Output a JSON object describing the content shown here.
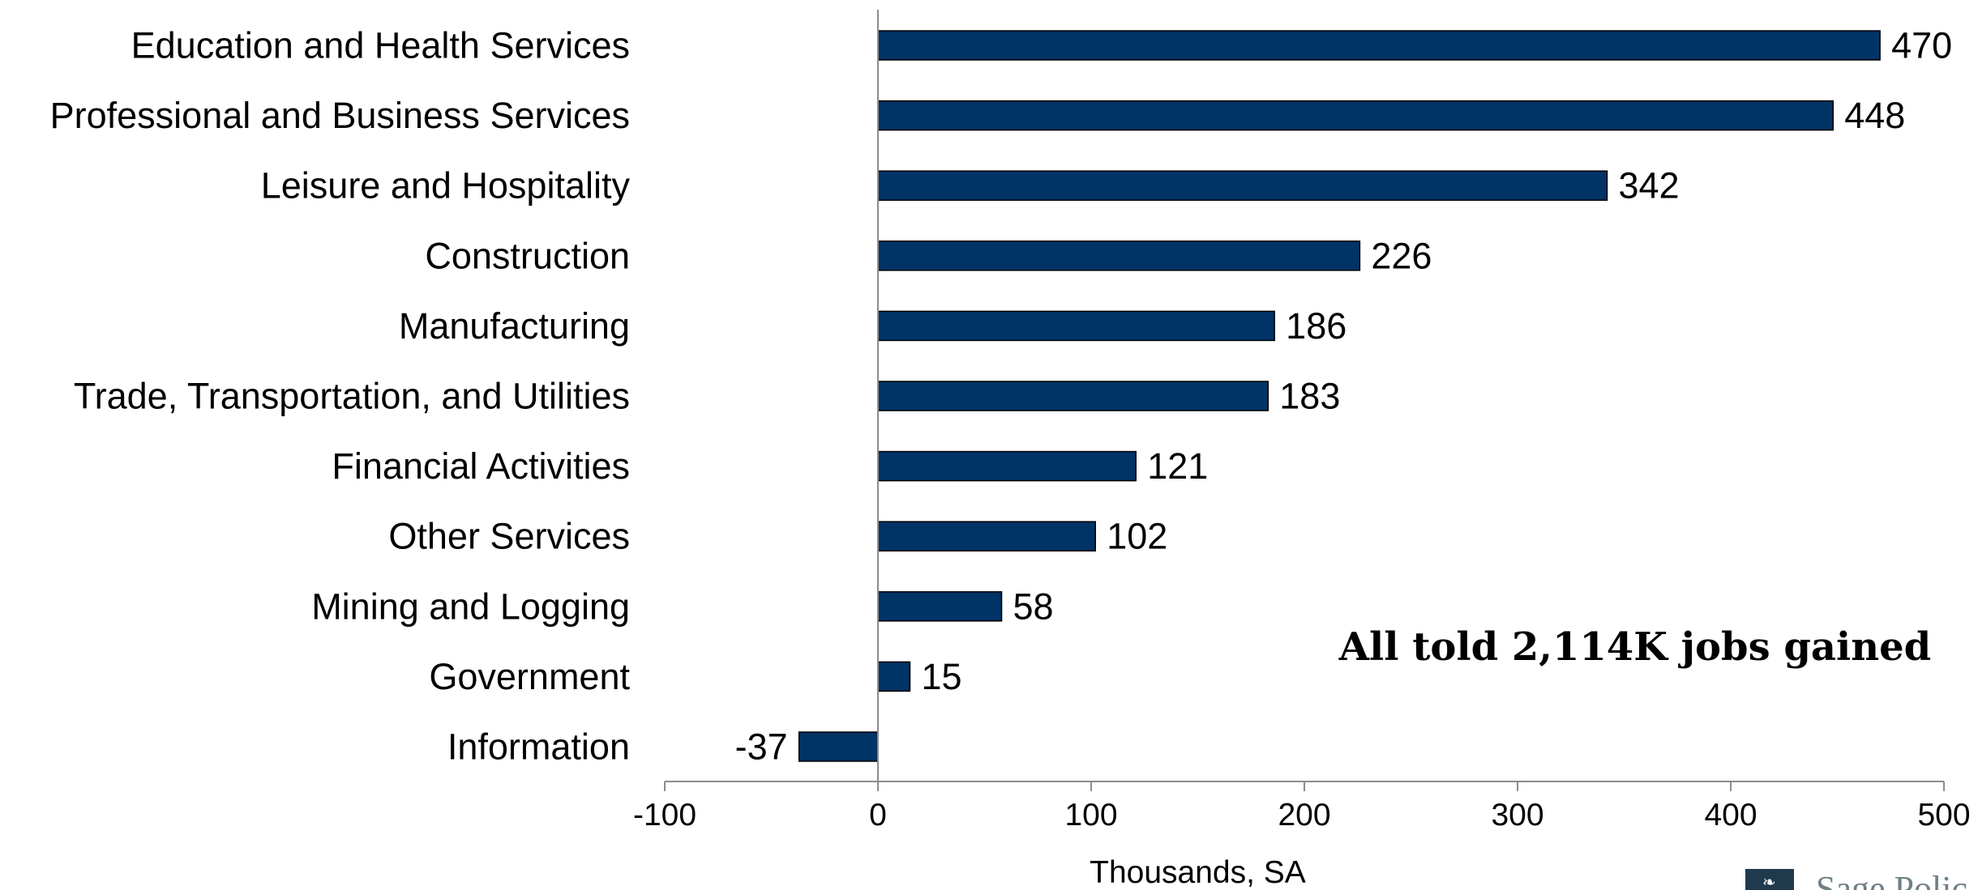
{
  "chart_data": {
    "type": "bar",
    "orientation": "horizontal",
    "categories": [
      "Education and Health Services",
      "Professional and Business Services",
      "Leisure and Hospitality",
      "Construction",
      "Manufacturing",
      "Trade, Transportation, and Utilities",
      "Financial Activities",
      "Other Services",
      "Mining and Logging",
      "Government",
      "Information"
    ],
    "values": [
      470,
      448,
      342,
      226,
      186,
      183,
      121,
      102,
      58,
      15,
      -37
    ],
    "data_labels": [
      "470",
      "448",
      "342",
      "226",
      "186",
      "183",
      "121",
      "102",
      "58",
      "15",
      "-37"
    ],
    "title": "",
    "xlabel": "Thousands, SA",
    "ylabel": "",
    "xlim": [
      -100,
      500
    ],
    "xticks": [
      -100,
      0,
      100,
      200,
      300,
      400,
      500
    ],
    "xtick_labels": [
      "-100",
      "0",
      "100",
      "200",
      "300",
      "400",
      "500"
    ],
    "grid": false,
    "legend": "none",
    "bar_color": "#003366",
    "bar_edge_color": "#000000",
    "annotation": "All told 2,114K jobs gained"
  },
  "logo": {
    "text": "Sage Polic",
    "mark_color": "#1f3a4d",
    "text_color": "#6f7f86"
  }
}
